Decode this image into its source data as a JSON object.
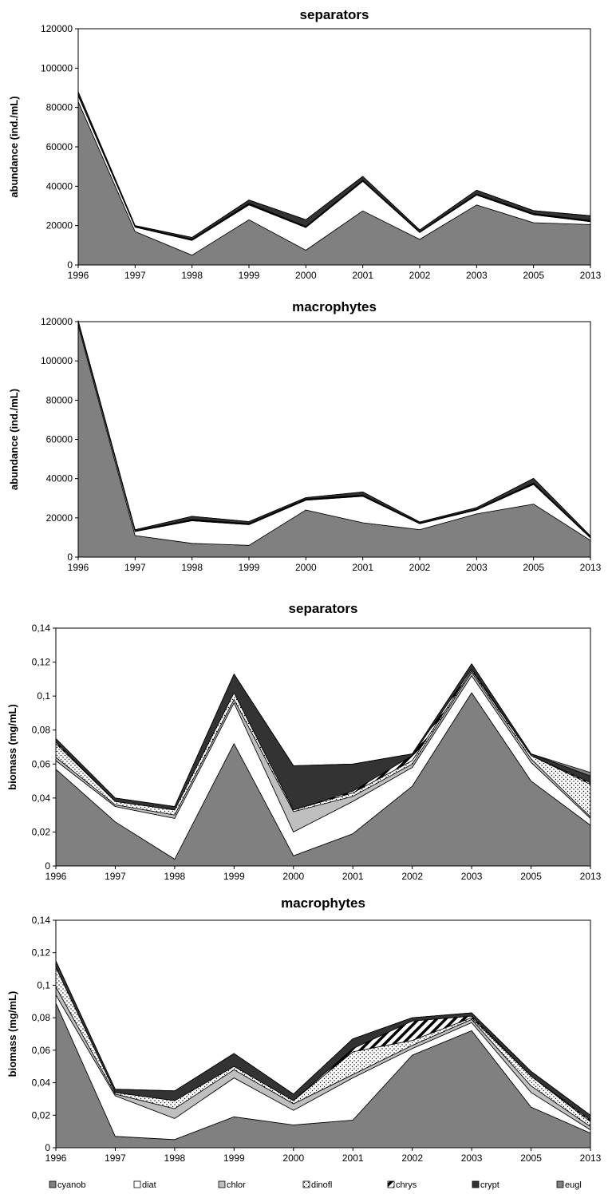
{
  "chart_data": [
    {
      "type": "area",
      "stacked": true,
      "title": "separators",
      "ylabel": "abundance (ind./mL)",
      "xlabel": "",
      "categories": [
        "1996",
        "1997",
        "1998",
        "1999",
        "2000",
        "2001",
        "2002",
        "2003",
        "2005",
        "2013"
      ],
      "ylim": [
        0,
        120000
      ],
      "yticks": [
        "0",
        "20000",
        "40000",
        "60000",
        "80000",
        "100000",
        "120000"
      ],
      "series": [
        {
          "name": "cyanob",
          "values": [
            83000,
            17000,
            5000,
            23000,
            7500,
            27500,
            13000,
            30500,
            21500,
            20500
          ]
        },
        {
          "name": "diat",
          "values": [
            3000,
            2200,
            7500,
            7500,
            11500,
            15000,
            3500,
            5000,
            4000,
            1500
          ]
        },
        {
          "name": "chlor",
          "values": [
            300,
            200,
            200,
            400,
            300,
            300,
            200,
            300,
            300,
            300
          ]
        },
        {
          "name": "dinofl",
          "values": [
            200,
            100,
            200,
            300,
            200,
            200,
            100,
            200,
            200,
            200
          ]
        },
        {
          "name": "chrys",
          "values": [
            100,
            100,
            100,
            100,
            100,
            100,
            100,
            100,
            100,
            100
          ]
        },
        {
          "name": "crypt",
          "values": [
            1400,
            400,
            1000,
            1700,
            3400,
            1900,
            900,
            1900,
            1500,
            2400
          ]
        },
        {
          "name": "eugl",
          "values": [
            0,
            0,
            0,
            0,
            0,
            0,
            0,
            0,
            0,
            0
          ]
        }
      ]
    },
    {
      "type": "area",
      "stacked": true,
      "title": "macrophytes",
      "ylabel": "abundance (ind./mL)",
      "xlabel": "",
      "categories": [
        "1996",
        "1997",
        "1998",
        "1999",
        "2000",
        "2001",
        "2002",
        "2003",
        "2005",
        "2013"
      ],
      "ylim": [
        0,
        120000
      ],
      "yticks": [
        "0",
        "20000",
        "40000",
        "60000",
        "80000",
        "100000",
        "120000"
      ],
      "series": [
        {
          "name": "cyanob",
          "values": [
            118000,
            11000,
            7000,
            6000,
            24000,
            17500,
            14000,
            22000,
            27000,
            8500
          ]
        },
        {
          "name": "diat",
          "values": [
            1500,
            2000,
            11500,
            10500,
            5000,
            13500,
            3000,
            2000,
            10000,
            1300
          ]
        },
        {
          "name": "chlor",
          "values": [
            200,
            200,
            300,
            300,
            300,
            300,
            200,
            200,
            300,
            200
          ]
        },
        {
          "name": "dinofl",
          "values": [
            200,
            100,
            300,
            200,
            200,
            200,
            100,
            100,
            300,
            100
          ]
        },
        {
          "name": "chrys",
          "values": [
            100,
            100,
            100,
            100,
            100,
            100,
            100,
            100,
            100,
            100
          ]
        },
        {
          "name": "crypt",
          "values": [
            500,
            500,
            1600,
            1000,
            700,
            1600,
            500,
            800,
            2400,
            600
          ]
        },
        {
          "name": "eugl",
          "values": [
            0,
            0,
            0,
            0,
            0,
            0,
            0,
            0,
            0,
            0
          ]
        }
      ]
    },
    {
      "type": "area",
      "stacked": true,
      "title": "separators",
      "ylabel": "biomass (mg/mL)",
      "xlabel": "",
      "categories": [
        "1996",
        "1997",
        "1998",
        "1999",
        "2000",
        "2001",
        "2002",
        "2003",
        "2005",
        "2013"
      ],
      "ylim": [
        0,
        0.14
      ],
      "yticks": [
        "0",
        "0,02",
        "0,04",
        "0,06",
        "0,08",
        "0,1",
        "0,12",
        "0,14"
      ],
      "series": [
        {
          "name": "cyanob",
          "values": [
            0.057,
            0.026,
            0.004,
            0.072,
            0.006,
            0.019,
            0.047,
            0.102,
            0.05,
            0.024
          ]
        },
        {
          "name": "diat",
          "values": [
            0.005,
            0.009,
            0.024,
            0.024,
            0.014,
            0.019,
            0.011,
            0.01,
            0.011,
            0.004
          ]
        },
        {
          "name": "chlor",
          "values": [
            0.002,
            0.001,
            0.002,
            0.002,
            0.012,
            0.003,
            0.002,
            0.002,
            0.002,
            0.001
          ]
        },
        {
          "name": "dinofl",
          "values": [
            0.008,
            0.002,
            0.003,
            0.004,
            0.001,
            0.002,
            0.002,
            0.001,
            0.002,
            0.019
          ]
        },
        {
          "name": "chrys",
          "values": [
            0.001,
            0.0,
            0.0,
            0.0,
            0.0,
            0.001,
            0.003,
            0.001,
            0.0,
            0.001
          ]
        },
        {
          "name": "crypt",
          "values": [
            0.002,
            0.002,
            0.002,
            0.011,
            0.026,
            0.016,
            0.001,
            0.003,
            0.001,
            0.004
          ]
        },
        {
          "name": "eugl",
          "values": [
            0.0,
            0.0,
            0.0,
            0.0,
            0.0,
            0.0,
            0.0,
            0.0,
            0.0,
            0.002
          ]
        }
      ]
    },
    {
      "type": "area",
      "stacked": true,
      "title": "macrophytes",
      "ylabel": "biomass (mg/mL)",
      "xlabel": "",
      "categories": [
        "1996",
        "1997",
        "1998",
        "1999",
        "2000",
        "2001",
        "2002",
        "2003",
        "2005",
        "2013"
      ],
      "ylim": [
        0,
        0.14
      ],
      "yticks": [
        "0",
        "0,02",
        "0,04",
        "0,06",
        "0,08",
        "0,1",
        "0,12",
        "0,14"
      ],
      "series": [
        {
          "name": "cyanob",
          "values": [
            0.089,
            0.007,
            0.005,
            0.019,
            0.014,
            0.017,
            0.057,
            0.072,
            0.025,
            0.009
          ]
        },
        {
          "name": "diat",
          "values": [
            0.005,
            0.025,
            0.013,
            0.024,
            0.009,
            0.026,
            0.004,
            0.005,
            0.009,
            0.002
          ]
        },
        {
          "name": "chlor",
          "values": [
            0.005,
            0.001,
            0.006,
            0.005,
            0.004,
            0.002,
            0.002,
            0.002,
            0.004,
            0.002
          ]
        },
        {
          "name": "dinofl",
          "values": [
            0.012,
            0.001,
            0.005,
            0.002,
            0.002,
            0.014,
            0.003,
            0.001,
            0.006,
            0.003
          ]
        },
        {
          "name": "chrys",
          "values": [
            0.0,
            0.0,
            0.0,
            0.0,
            0.0,
            0.002,
            0.012,
            0.001,
            0.0,
            0.001
          ]
        },
        {
          "name": "crypt",
          "values": [
            0.004,
            0.002,
            0.006,
            0.008,
            0.004,
            0.006,
            0.002,
            0.002,
            0.003,
            0.003
          ]
        },
        {
          "name": "eugl",
          "values": [
            0.0,
            0.0,
            0.0,
            0.0,
            0.0,
            0.0,
            0.0,
            0.0,
            0.0,
            0.0
          ]
        }
      ]
    }
  ],
  "legend": {
    "placement": "bottom",
    "entries": [
      "cyanob",
      "diat",
      "chlor",
      "dinofl",
      "chrys",
      "crypt",
      "eugl"
    ]
  },
  "series_styles": {
    "cyanob": {
      "fill": "#808080",
      "pattern": "solid"
    },
    "diat": {
      "fill": "#ffffff",
      "pattern": "solid"
    },
    "chlor": {
      "fill": "#bfbfbf",
      "pattern": "solid"
    },
    "dinofl": {
      "fill": "#ffffff",
      "pattern": "dots"
    },
    "chrys": {
      "fill": "#ffffff",
      "pattern": "diagonal-stripes"
    },
    "crypt": {
      "fill": "#333333",
      "pattern": "solid"
    },
    "eugl": {
      "fill": "#808080",
      "pattern": "solid"
    }
  }
}
